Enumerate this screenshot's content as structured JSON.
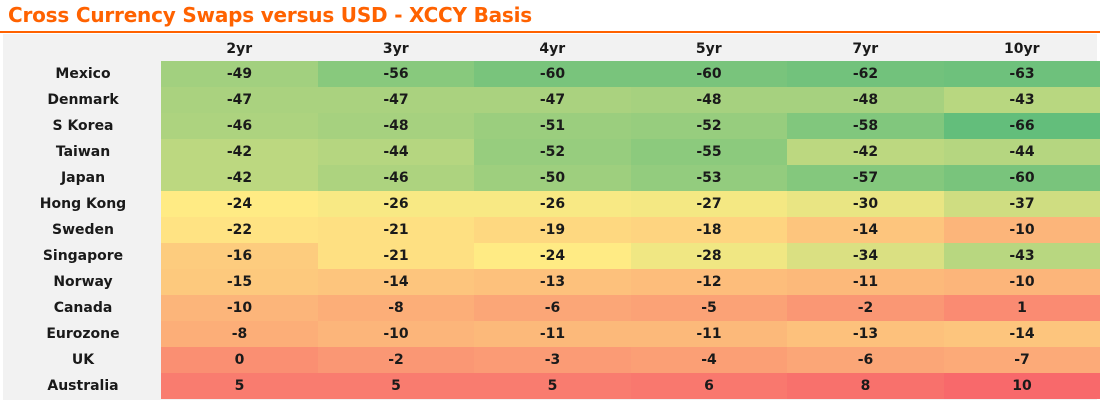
{
  "title": "Cross Currency Swaps versus USD - XCCY Basis",
  "chart_data": {
    "type": "heatmap",
    "title": "Cross Currency Swaps versus USD - XCCY Basis",
    "columns": [
      "2yr",
      "3yr",
      "4yr",
      "5yr",
      "7yr",
      "10yr"
    ],
    "rows": [
      "Mexico",
      "Denmark",
      "S Korea",
      "Taiwan",
      "Japan",
      "Hong Kong",
      "Sweden",
      "Singapore",
      "Norway",
      "Canada",
      "Eurozone",
      "UK",
      "Australia"
    ],
    "values": [
      [
        -49,
        -56,
        -60,
        -60,
        -62,
        -63
      ],
      [
        -47,
        -47,
        -47,
        -48,
        -48,
        -43
      ],
      [
        -46,
        -48,
        -51,
        -52,
        -58,
        -66
      ],
      [
        -42,
        -44,
        -52,
        -55,
        -42,
        -44
      ],
      [
        -42,
        -46,
        -50,
        -53,
        -57,
        -60
      ],
      [
        -24,
        -26,
        -26,
        -27,
        -30,
        -37
      ],
      [
        -22,
        -21,
        -19,
        -18,
        -14,
        -10
      ],
      [
        -16,
        -21,
        -24,
        -28,
        -34,
        -43
      ],
      [
        -15,
        -14,
        -13,
        -12,
        -11,
        -10
      ],
      [
        -10,
        -8,
        -6,
        -5,
        -2,
        1
      ],
      [
        -8,
        -10,
        -11,
        -11,
        -13,
        -14
      ],
      [
        0,
        -2,
        -3,
        -4,
        -6,
        -7
      ],
      [
        5,
        5,
        5,
        6,
        8,
        10
      ]
    ],
    "color_scale": {
      "low": "#63be7b",
      "mid": "#ffeb84",
      "high": "#f8696b"
    }
  }
}
